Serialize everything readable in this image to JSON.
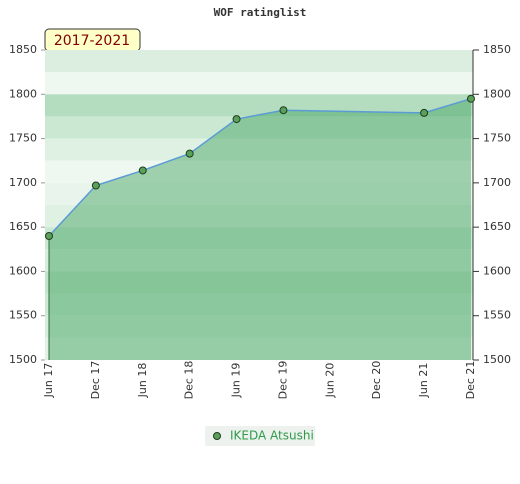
{
  "chart_data": {
    "type": "area",
    "title": "WOF ratinglist",
    "badge": "2017-2021",
    "categories": [
      "Jun 17",
      "Dec 17",
      "Jun 18",
      "Dec 18",
      "Jun 19",
      "Dec 19",
      "Jun 20",
      "Dec 20",
      "Jun 21",
      "Dec 21"
    ],
    "series": [
      {
        "name": "IKEDA Atsushi",
        "color": "#5b9bd5",
        "x": [
          "Jun 17",
          "Dec 17",
          "Jun 18",
          "Dec 18",
          "Jun 19",
          "Dec 19",
          "Jun 21",
          "Dec 21"
        ],
        "values": [
          1640,
          1697,
          1714,
          1733,
          1772,
          1782,
          1779,
          1795
        ]
      }
    ],
    "ylim": [
      1500,
      1850
    ],
    "yticks": [
      1500,
      1550,
      1600,
      1650,
      1700,
      1750,
      1800,
      1850
    ],
    "y2lim": [
      1500,
      1850
    ],
    "y2ticks": [
      1500,
      1550,
      1600,
      1650,
      1700,
      1750,
      1800,
      1850
    ]
  }
}
